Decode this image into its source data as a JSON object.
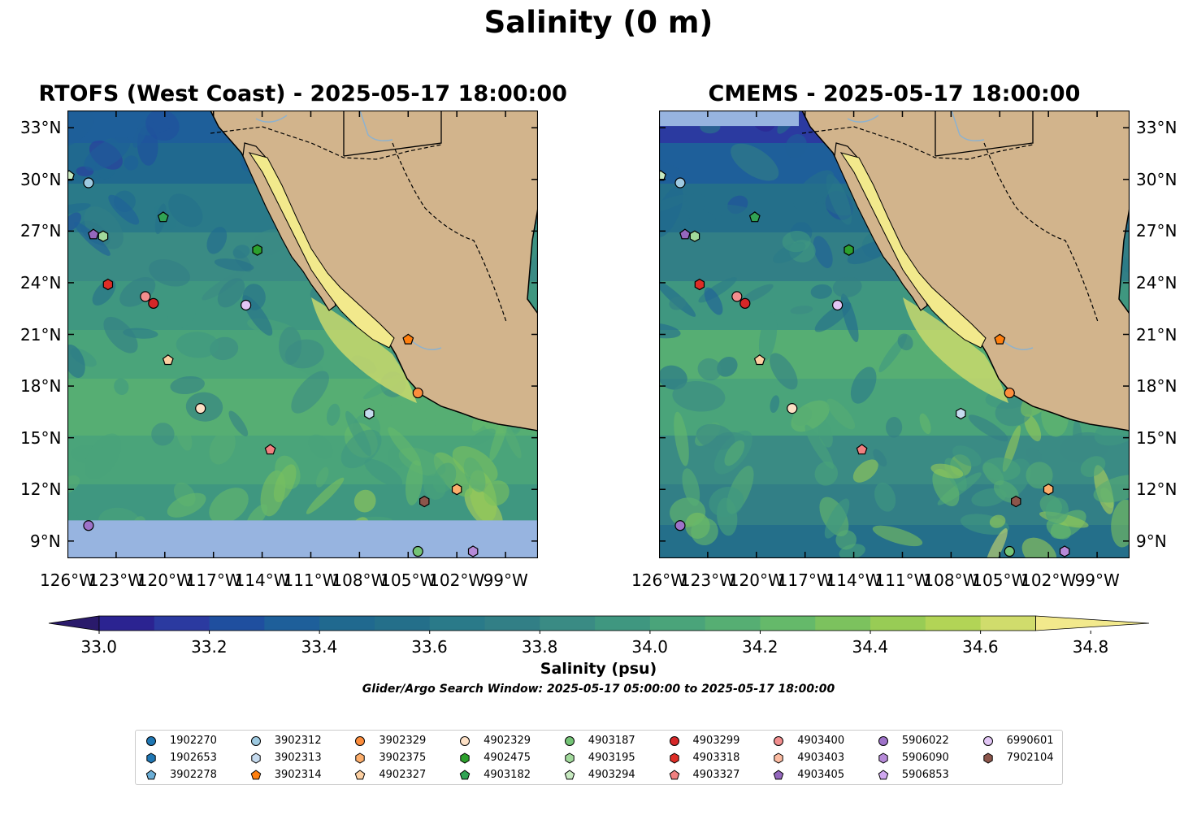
{
  "figure": {
    "title": "Salinity (0 m)",
    "panels": [
      {
        "title": "RTOFS (West Coast) - 2025-05-17 18:00:00"
      },
      {
        "title": "CMEMS - 2025-05-17 18:00:00"
      }
    ],
    "lon_ticks": [
      "126°W",
      "123°W",
      "120°W",
      "117°W",
      "114°W",
      "111°W",
      "108°W",
      "105°W",
      "102°W",
      "99°W"
    ],
    "lat_ticks": [
      "33°N",
      "30°N",
      "27°N",
      "24°N",
      "21°N",
      "18°N",
      "15°N",
      "12°N",
      "9°N"
    ],
    "colorbar": {
      "label": "Salinity (psu)",
      "ticks": [
        "33.0",
        "33.2",
        "33.4",
        "33.6",
        "33.8",
        "34.0",
        "34.2",
        "34.4",
        "34.6",
        "34.8"
      ],
      "colors": [
        "#2a1a6b",
        "#2b2391",
        "#2b3aa0",
        "#1f4f9f",
        "#1e5f9a",
        "#20698f",
        "#246f8a",
        "#2a7a89",
        "#327f86",
        "#3a8b84",
        "#3f9780",
        "#4aa47a",
        "#56ae73",
        "#65b96a",
        "#7cc25e",
        "#98cc55",
        "#b2d456",
        "#d0dc6c",
        "#f2e98c"
      ]
    },
    "window_note": "Glider/Argo Search Window: 2025-05-17 05:00:00 to 2025-05-17 18:00:00",
    "colors": {
      "land": "#d2b48c",
      "nodata": "#97b4e0",
      "coastline": "#000000",
      "rivers": "#8db2cf"
    }
  },
  "chart_data": {
    "type": "map",
    "variable": "Salinity (psu)",
    "depth": "0 m",
    "lon_range": [
      -126,
      -97
    ],
    "lat_range": [
      8,
      34
    ],
    "colorbar_range": [
      32.9,
      34.9
    ],
    "markers": [
      {
        "id": "1902270",
        "shape": "circle",
        "color": "#1f77b4",
        "lon": null,
        "lat": null
      },
      {
        "id": "1902653",
        "shape": "hexagon",
        "color": "#1f77b4",
        "lon": null,
        "lat": null
      },
      {
        "id": "3902278",
        "shape": "pentagon",
        "color": "#6baed6",
        "lon": null,
        "lat": null
      },
      {
        "id": "3902312",
        "shape": "circle",
        "color": "#9ecae1",
        "lon": -124.7,
        "lat": 29.8
      },
      {
        "id": "3902313",
        "shape": "hexagon",
        "color": "#c6dbef",
        "lon": -107.4,
        "lat": 16.4
      },
      {
        "id": "3902314",
        "shape": "pentagon",
        "color": "#ff7f0e",
        "lon": -105.0,
        "lat": 20.7
      },
      {
        "id": "3902329",
        "shape": "circle",
        "color": "#fd8d3c",
        "lon": -104.4,
        "lat": 17.6
      },
      {
        "id": "3902375",
        "shape": "hexagon",
        "color": "#fdae6b",
        "lon": -102.0,
        "lat": 12.0
      },
      {
        "id": "4902327",
        "shape": "pentagon",
        "color": "#fdd0a2",
        "lon": -119.8,
        "lat": 19.5
      },
      {
        "id": "4902329",
        "shape": "circle",
        "color": "#fde0c5",
        "lon": -117.8,
        "lat": 16.7
      },
      {
        "id": "4902475",
        "shape": "hexagon",
        "color": "#2ca02c",
        "lon": -114.3,
        "lat": 25.9
      },
      {
        "id": "4903182",
        "shape": "pentagon",
        "color": "#31a354",
        "lon": -120.1,
        "lat": 27.8
      },
      {
        "id": "4903187",
        "shape": "circle",
        "color": "#74c476",
        "lon": -104.4,
        "lat": 8.4
      },
      {
        "id": "4903195",
        "shape": "hexagon",
        "color": "#a1d99b",
        "lon": -123.8,
        "lat": 26.7
      },
      {
        "id": "4903294",
        "shape": "pentagon",
        "color": "#c7e9c0",
        "lon": -125.9,
        "lat": 30.2
      },
      {
        "id": "4903299",
        "shape": "circle",
        "color": "#d62728",
        "lon": -120.7,
        "lat": 22.8
      },
      {
        "id": "4903318",
        "shape": "hexagon",
        "color": "#de2d26",
        "lon": -123.5,
        "lat": 23.9
      },
      {
        "id": "4903327",
        "shape": "pentagon",
        "color": "#f08080",
        "lon": -113.5,
        "lat": 14.3
      },
      {
        "id": "4903400",
        "shape": "circle",
        "color": "#f28e8e",
        "lon": -121.2,
        "lat": 23.2
      },
      {
        "id": "4903403",
        "shape": "hexagon",
        "color": "#fcbba1",
        "lon": null,
        "lat": null
      },
      {
        "id": "4903405",
        "shape": "pentagon",
        "color": "#9467bd",
        "lon": -124.4,
        "lat": 26.8
      },
      {
        "id": "5906022",
        "shape": "circle",
        "color": "#9e72c9",
        "lon": -124.7,
        "lat": 9.9
      },
      {
        "id": "5906090",
        "shape": "hexagon",
        "color": "#b68ad8",
        "lon": -101.0,
        "lat": 8.4
      },
      {
        "id": "5906853",
        "shape": "pentagon",
        "color": "#d0a8f0",
        "lon": null,
        "lat": null
      },
      {
        "id": "6990601",
        "shape": "circle",
        "color": "#e2c6f5",
        "lon": -115.0,
        "lat": 22.7
      },
      {
        "id": "7902104",
        "shape": "hexagon",
        "color": "#8c564b",
        "lon": -104.0,
        "lat": 11.3
      }
    ]
  }
}
